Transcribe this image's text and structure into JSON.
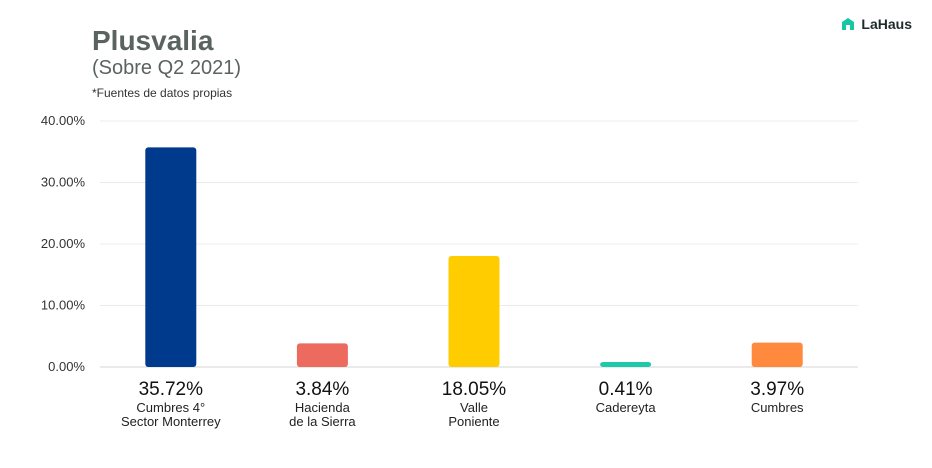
{
  "header": {
    "title": "Plusvalia",
    "subtitle": "(Sobre Q2 2021)",
    "note": "*Fuentes de datos propias"
  },
  "brand": {
    "name": "LaHaus",
    "icon": "house-logo-icon",
    "color": "#17c6a5"
  },
  "chart_data": {
    "type": "bar",
    "categories": [
      [
        "Cumbres 4°",
        "Sector Monterrey"
      ],
      [
        "Hacienda",
        "de la Sierra"
      ],
      [
        "Valle",
        "Poniente"
      ],
      [
        "Cadereyta"
      ],
      [
        "Cumbres"
      ]
    ],
    "values": [
      35.72,
      3.84,
      18.05,
      0.41,
      3.97
    ],
    "value_labels": [
      "35.72%",
      "3.84%",
      "18.05%",
      "0.41%",
      "3.97%"
    ],
    "colors": [
      "#003a8c",
      "#ec6a5e",
      "#ffcc00",
      "#1fc8a8",
      "#ff8a3d"
    ],
    "ylim": [
      0,
      40
    ],
    "yticks": [
      0,
      10,
      20,
      30,
      40
    ],
    "ytick_labels": [
      "0.00%",
      "10.00%",
      "20.00%",
      "30.00%",
      "40.00%"
    ],
    "grid": true
  }
}
